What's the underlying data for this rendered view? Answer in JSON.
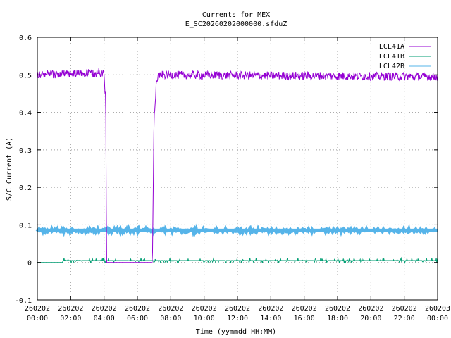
{
  "chart_data": {
    "type": "line",
    "title": "Currents for MEX",
    "subtitle": "E_SC20260202000000.sfduZ",
    "xlabel": "Time (yymmdd HH:MM)",
    "ylabel": "S/C Current (A)",
    "xlim": [
      0,
      24
    ],
    "ylim": [
      -0.1,
      0.6
    ],
    "grid": true,
    "legend_position": "top-right",
    "x_ticks": [
      {
        "value": 0,
        "date": "260202",
        "time": "00:00"
      },
      {
        "value": 2,
        "date": "260202",
        "time": "02:00"
      },
      {
        "value": 4,
        "date": "260202",
        "time": "04:00"
      },
      {
        "value": 6,
        "date": "260202",
        "time": "06:00"
      },
      {
        "value": 8,
        "date": "260202",
        "time": "08:00"
      },
      {
        "value": 10,
        "date": "260202",
        "time": "10:00"
      },
      {
        "value": 12,
        "date": "260202",
        "time": "12:00"
      },
      {
        "value": 14,
        "date": "260202",
        "time": "14:00"
      },
      {
        "value": 16,
        "date": "260202",
        "time": "16:00"
      },
      {
        "value": 18,
        "date": "260202",
        "time": "18:00"
      },
      {
        "value": 20,
        "date": "260202",
        "time": "20:00"
      },
      {
        "value": 22,
        "date": "260202",
        "time": "22:00"
      },
      {
        "value": 24,
        "date": "260203",
        "time": "00:00"
      }
    ],
    "y_ticks": [
      {
        "value": 0.6,
        "label": "0.6"
      },
      {
        "value": 0.5,
        "label": "0.5"
      },
      {
        "value": 0.4,
        "label": "0.4"
      },
      {
        "value": 0.3,
        "label": "0.3"
      },
      {
        "value": 0.2,
        "label": "0.2"
      },
      {
        "value": 0.1,
        "label": "0.1"
      },
      {
        "value": 0,
        "label": "0"
      },
      {
        "value": -0.1,
        "label": "-0.1"
      }
    ],
    "series": [
      {
        "name": "LCL41A",
        "color": "#9400d3",
        "x": [
          0,
          4.0,
          4.05,
          4.1,
          4.15,
          4.85,
          5.5,
          6.0,
          6.5,
          6.9,
          7.0,
          7.05,
          7.15,
          7.3,
          24
        ],
        "y": [
          0.5,
          0.505,
          0.45,
          0.45,
          0.0,
          0.0,
          0.0,
          0.0,
          0.0,
          0.0,
          0.4,
          0.42,
          0.49,
          0.5,
          0.495
        ]
      },
      {
        "name": "LCL41B",
        "color": "#009e73",
        "x": [
          0,
          1.5,
          1.55,
          24
        ],
        "y": [
          0.0,
          0.0,
          0.005,
          0.005
        ]
      },
      {
        "name": "LCL42B",
        "color": "#56b4e9",
        "x": [
          0,
          24
        ],
        "y": [
          0.085,
          0.085
        ]
      }
    ]
  }
}
